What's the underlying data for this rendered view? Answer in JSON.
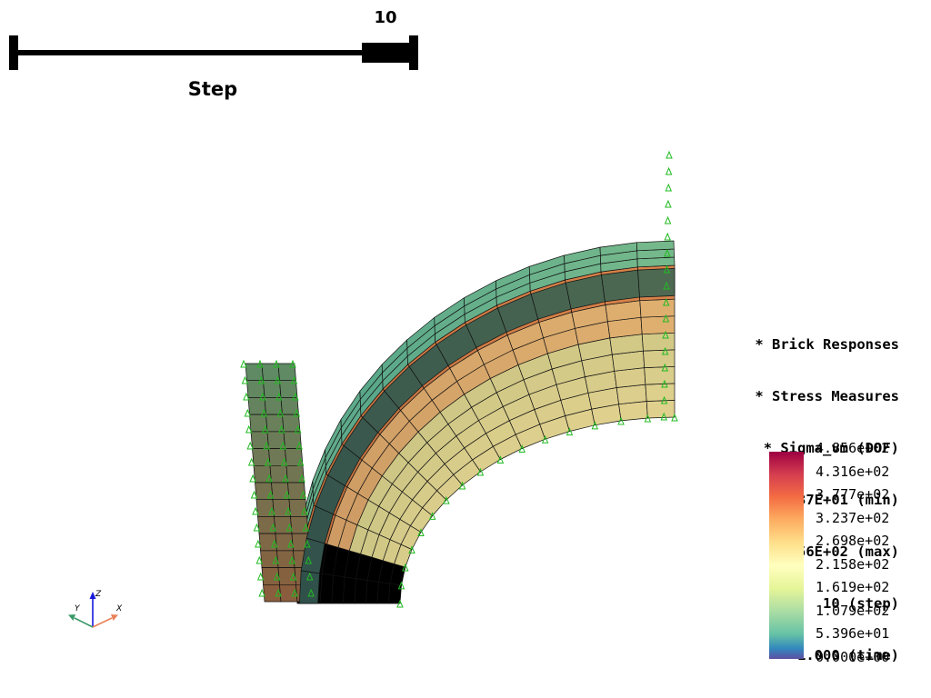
{
  "slider": {
    "title": "Step",
    "value": "10",
    "fraction": 0.88
  },
  "info": {
    "lines": [
      "* Brick Responses",
      "* Stress Measures",
      "* Sigma_vm (DOF)",
      "6.837E+01 (min)",
      "4.856E+02 (max)",
      "10 (step)",
      "1.000 (time)"
    ]
  },
  "colorbar": {
    "labels": [
      "4.856e+02",
      "4.316e+02",
      "3.777e+02",
      "3.237e+02",
      "2.698e+02",
      "2.158e+02",
      "1.619e+02",
      "1.079e+02",
      "5.396e+01",
      "0.000e+00"
    ],
    "colormap": [
      "#9e0142",
      "#d53e4f",
      "#f46d43",
      "#fdae61",
      "#fee08b",
      "#ffffbf",
      "#e6f598",
      "#abdda4",
      "#66c2a5",
      "#3288bd",
      "#5e4fa2"
    ]
  },
  "axes": {
    "x": "X",
    "y": "Y",
    "z": "Z",
    "x_color": "#e8815a",
    "y_color": "#3a9a6a",
    "z_color": "#1a1adc"
  },
  "mesh": {
    "edge_color": "#111111",
    "bc_color": "#22bb22"
  }
}
